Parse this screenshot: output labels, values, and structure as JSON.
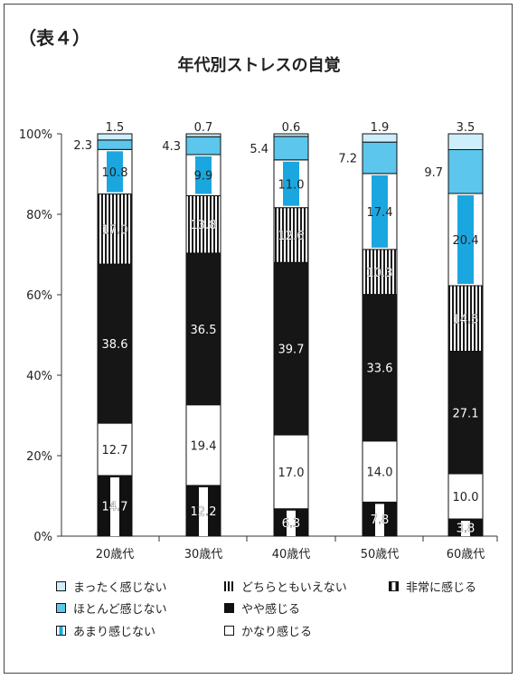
{
  "table_label": "（表４）",
  "chart_data": {
    "type": "bar",
    "stacked": true,
    "title": "年代別ストレスの自覚",
    "categories": [
      "20歳代",
      "30歳代",
      "40歳代",
      "50歳代",
      "60歳代"
    ],
    "y_ticks": [
      "0%",
      "20%",
      "40%",
      "60%",
      "80%",
      "100%"
    ],
    "ylim": [
      0,
      100
    ],
    "series": [
      {
        "name": "非常に感じる",
        "values": [
          14.7,
          12.2,
          6.3,
          7.8,
          3.8
        ],
        "labels": [
          "14.7",
          "12.2",
          "6.3",
          "7.8",
          "3.8"
        ]
      },
      {
        "name": "かなり感じる",
        "values": [
          12.7,
          19.4,
          17.0,
          14.0,
          10.0
        ],
        "labels": [
          "12.7",
          "19.4",
          "17.0",
          "14.0",
          "10.0"
        ]
      },
      {
        "name": "やや感じる",
        "values": [
          38.6,
          36.5,
          39.7,
          33.6,
          27.1
        ],
        "labels": [
          "38.6",
          "36.5",
          "39.7",
          "33.6",
          "27.1"
        ]
      },
      {
        "name": "どちらともいえない",
        "values": [
          17.0,
          13.8,
          12.6,
          10.3,
          14.5
        ],
        "labels": [
          "17.0",
          "13.8",
          "12.6",
          "10.3",
          "14.5"
        ]
      },
      {
        "name": "あまり感じない",
        "values": [
          10.8,
          9.9,
          11.0,
          17.4,
          20.4
        ],
        "labels": [
          "10.8",
          "9.9",
          "11.0",
          "17.4",
          "20.4"
        ]
      },
      {
        "name": "ほとんど感じない",
        "values": [
          2.3,
          4.3,
          5.4,
          7.2,
          9.7
        ],
        "labels": [
          "2.3",
          "4.3",
          "5.4",
          "7.2",
          "9.7"
        ]
      },
      {
        "name": "まったく感じない",
        "values": [
          1.5,
          0.7,
          0.6,
          1.9,
          3.5
        ],
        "labels": [
          "1.5",
          "0.7",
          "0.6",
          "1.9",
          "3.5"
        ]
      }
    ],
    "legend_order": [
      "まったく感じない",
      "どちらともいえない",
      "非常に感じる",
      "ほとんど感じない",
      "やや感じる",
      "あまり感じない",
      "かなり感じる"
    ],
    "grid": false,
    "legend_position": "bottom"
  }
}
